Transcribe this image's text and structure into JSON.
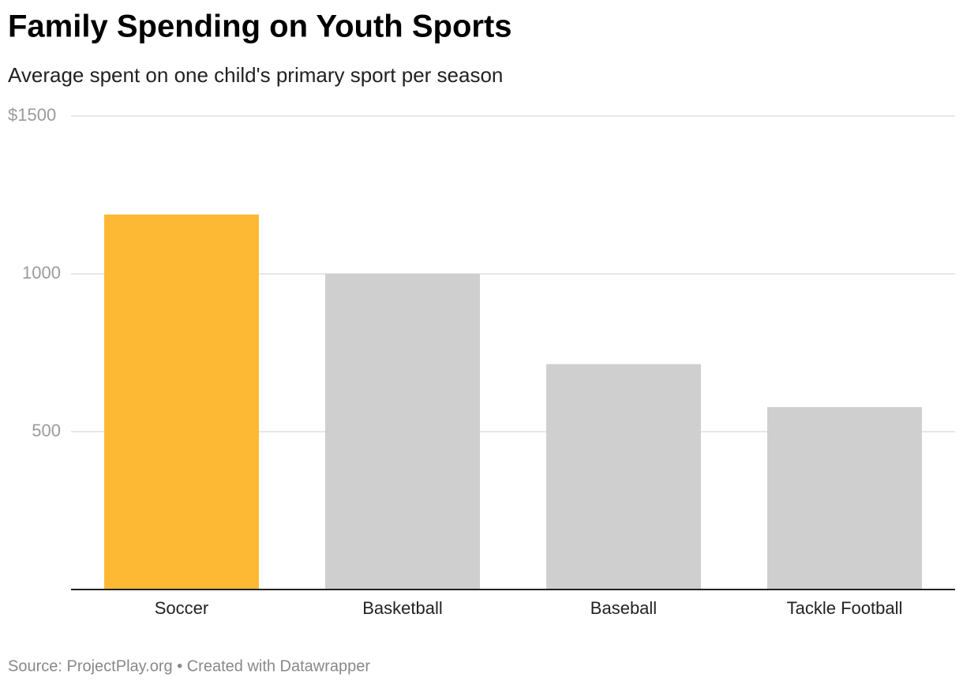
{
  "chart_data": {
    "type": "bar",
    "title": "Family Spending on Youth Sports",
    "subtitle": "Average spent on one child's primary sport per season",
    "categories": [
      "Soccer",
      "Basketball",
      "Baseball",
      "Tackle Football"
    ],
    "values": [
      1188,
      1000,
      714,
      578
    ],
    "colors": [
      "#fdb933",
      "#cfcfcf",
      "#cfcfcf",
      "#cfcfcf"
    ],
    "ylim": [
      0,
      1500
    ],
    "yticks": [
      500,
      1000,
      {
        "value": 1500,
        "label": "$1500"
      }
    ],
    "grid": true,
    "source": "Source: ProjectPlay.org • Created with Datawrapper"
  }
}
